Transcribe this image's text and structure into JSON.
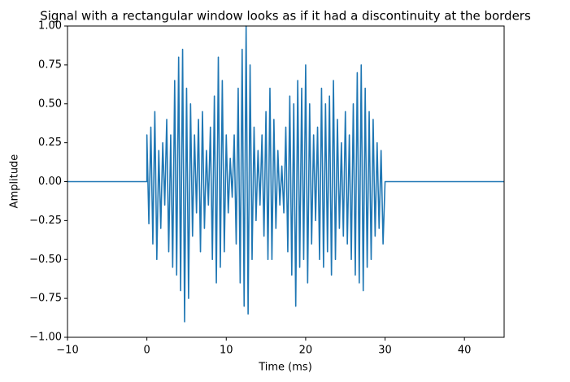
{
  "chart_data": {
    "type": "line",
    "title": "Signal with a rectangular window looks as if it had a discontinuity at the borders",
    "x_label": "Time (ms)",
    "y_label": "Amplitude",
    "xlim": [
      -10,
      45
    ],
    "ylim": [
      -1,
      1
    ],
    "xticks": [
      {
        "value": -10,
        "label": "−10"
      },
      0,
      10,
      20,
      30,
      40
    ],
    "yticks": [
      {
        "value": -1,
        "label": "−1.00"
      },
      {
        "value": -0.75,
        "label": "−0.75"
      },
      {
        "value": -0.5,
        "label": "−0.50"
      },
      {
        "value": -0.25,
        "label": "−0.25"
      },
      {
        "value": 0,
        "label": "0.00"
      },
      {
        "value": 0.25,
        "label": "0.25"
      },
      {
        "value": 0.5,
        "label": "0.50"
      },
      {
        "value": 0.75,
        "label": "0.75"
      },
      {
        "value": 1,
        "label": "1.00"
      }
    ],
    "x": [
      -10,
      0,
      0,
      0.25,
      0.5,
      0.75,
      1,
      1.25,
      1.5,
      1.75,
      2,
      2.25,
      2.5,
      2.75,
      3,
      3.25,
      3.5,
      3.75,
      4,
      4.25,
      4.5,
      4.75,
      5,
      5.25,
      5.5,
      5.75,
      6,
      6.25,
      6.5,
      6.75,
      7,
      7.25,
      7.5,
      7.75,
      8,
      8.25,
      8.5,
      8.75,
      9,
      9.25,
      9.5,
      9.75,
      10,
      10.25,
      10.5,
      10.75,
      11,
      11.25,
      11.5,
      11.75,
      12,
      12.25,
      12.5,
      12.75,
      13,
      13.25,
      13.5,
      13.75,
      14,
      14.25,
      14.5,
      14.75,
      15,
      15.25,
      15.5,
      15.75,
      16,
      16.25,
      16.5,
      16.75,
      17,
      17.25,
      17.5,
      17.75,
      18,
      18.25,
      18.5,
      18.75,
      19,
      19.25,
      19.5,
      19.75,
      20,
      20.25,
      20.5,
      20.75,
      21,
      21.25,
      21.5,
      21.75,
      22,
      22.25,
      22.5,
      22.75,
      23,
      23.25,
      23.5,
      23.75,
      24,
      24.25,
      24.5,
      24.75,
      25,
      25.25,
      25.5,
      25.75,
      26,
      26.25,
      26.5,
      26.75,
      27,
      27.25,
      27.5,
      27.75,
      28,
      28.25,
      28.5,
      28.75,
      29,
      29.25,
      29.5,
      29.75,
      30,
      45
    ],
    "series": [
      {
        "color": "#1f77b4",
        "values": [
          0,
          0,
          0.3,
          -0.27,
          0.35,
          -0.4,
          0.45,
          -0.5,
          0.2,
          -0.3,
          0.25,
          -0.15,
          0.4,
          -0.45,
          0.3,
          -0.55,
          0.65,
          -0.6,
          0.8,
          -0.7,
          0.85,
          -0.9,
          0.6,
          -0.75,
          0.5,
          -0.35,
          0.3,
          -0.2,
          0.4,
          -0.45,
          0.45,
          -0.3,
          0.2,
          -0.15,
          0.35,
          -0.5,
          0.55,
          -0.65,
          0.8,
          -0.55,
          0.65,
          -0.45,
          0.3,
          -0.2,
          0.15,
          -0.1,
          0.3,
          -0.4,
          0.6,
          -0.65,
          0.85,
          -0.8,
          1.0,
          -0.85,
          0.75,
          -0.5,
          0.35,
          -0.25,
          0.2,
          -0.15,
          0.3,
          -0.35,
          0.45,
          -0.5,
          0.6,
          -0.5,
          0.4,
          -0.3,
          0.2,
          -0.15,
          0.1,
          -0.2,
          0.35,
          -0.45,
          0.55,
          -0.6,
          0.5,
          -0.8,
          0.65,
          -0.55,
          0.6,
          -0.5,
          0.75,
          -0.65,
          0.5,
          -0.4,
          0.3,
          -0.25,
          0.35,
          -0.5,
          0.6,
          -0.55,
          0.5,
          -0.45,
          0.55,
          -0.6,
          0.65,
          -0.5,
          0.4,
          -0.3,
          0.25,
          -0.35,
          0.45,
          -0.4,
          0.3,
          -0.5,
          0.5,
          -0.6,
          0.7,
          -0.65,
          0.75,
          -0.7,
          0.6,
          -0.55,
          0.45,
          -0.5,
          0.4,
          -0.35,
          0.25,
          -0.3,
          0.2,
          -0.4,
          0,
          0
        ]
      }
    ]
  }
}
